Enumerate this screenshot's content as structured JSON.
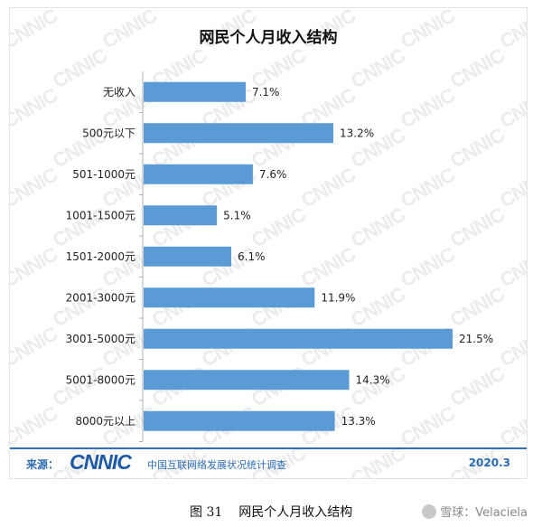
{
  "chart_data": {
    "type": "bar",
    "orientation": "horizontal",
    "title": "网民个人月收入结构",
    "categories": [
      "无收入",
      "500元以下",
      "501-1000元",
      "1001-1500元",
      "1501-2000元",
      "2001-3000元",
      "3001-5000元",
      "5001-8000元",
      "8000元以上"
    ],
    "values": [
      7.1,
      13.2,
      7.6,
      5.1,
      6.1,
      11.9,
      21.5,
      14.3,
      13.3
    ],
    "value_labels": [
      "7.1%",
      "13.2%",
      "7.6%",
      "5.1%",
      "6.1%",
      "11.9%",
      "21.5%",
      "14.3%",
      "13.3%"
    ],
    "unit": "%",
    "xlim": [
      0,
      22
    ],
    "grid": false,
    "bar_color": "#5b9bd5"
  },
  "source": {
    "label": "来源：",
    "logo_text": "CNNIC",
    "org": "中国互联网络发展状况统计调查",
    "date": "2020.3"
  },
  "caption": {
    "number": "图 31",
    "text": "网民个人月收入结构"
  },
  "credit": {
    "site": "雪球：",
    "user": "Velaciela"
  },
  "watermark": "CNNIC",
  "colors": {
    "accent": "#2b6cb3",
    "bar": "#5b9bd5",
    "watermark": "#ececec"
  }
}
